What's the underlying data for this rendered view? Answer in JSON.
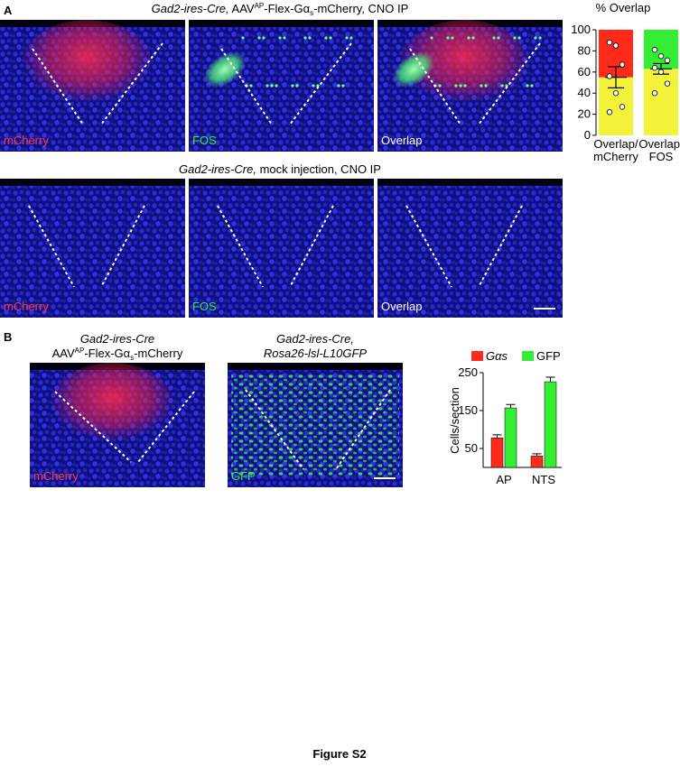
{
  "panel_a": {
    "label": "A",
    "row_1": {
      "title": {
        "italic": "Gad2-ires-Cre,",
        "parts": [
          " AAV",
          "AP",
          "-Flex-Gα",
          "s",
          "-mCherry, CNO IP"
        ]
      },
      "image_labels": [
        "mCherry",
        "FOS",
        "Overlap"
      ]
    },
    "row_2": {
      "title": {
        "italic": "Gad2-ires-Cre,",
        "rest": " mock injection, CNO IP"
      },
      "image_labels": [
        "mCherry",
        "FOS",
        "Overlap"
      ]
    }
  },
  "panel_b": {
    "label": "B",
    "image_1": {
      "line_1": "Gad2-ires-Cre",
      "line_2": [
        "AAV",
        "AP",
        "-Flex-Gα",
        "s",
        "-mCherry"
      ],
      "label": "mCherry"
    },
    "image_2": {
      "line_1": "Gad2-ires-Cre,",
      "line_2": "Rosa26-lsl-L10GFP",
      "label": "GFP"
    }
  },
  "chart_data": [
    {
      "type": "stacked_bar",
      "title": "% Overlap",
      "categories": [
        [
          "Overlap/",
          "mCherry"
        ],
        [
          "Overlap/",
          "FOS"
        ]
      ],
      "series": [
        {
          "colors": [
            "#f2f23a",
            "#f2f23a"
          ],
          "values": [
            55,
            63
          ],
          "errors": [
            10,
            5
          ],
          "points": [
            [
              88,
              85,
              67,
              56,
              40,
              27,
              22
            ],
            [
              81,
              75,
              71,
              64,
              60,
              49,
              40
            ]
          ]
        },
        {
          "colors": [
            "#ff2a1a",
            "#33ee33"
          ],
          "values": [
            45,
            37
          ]
        }
      ],
      "ylim": [
        0,
        100
      ],
      "yticks": [
        0,
        20,
        40,
        60,
        80,
        100
      ]
    },
    {
      "type": "grouped_bar",
      "ylabel": "Cells/section",
      "categories": [
        "AP",
        "NTS"
      ],
      "series": [
        {
          "name": "Gαs",
          "color": "#ff2a1a",
          "values": [
            78,
            30
          ],
          "errors": [
            8,
            6
          ]
        },
        {
          "name": "GFP",
          "color": "#33ee33",
          "values": [
            157,
            226
          ],
          "errors": [
            9,
            12
          ]
        }
      ],
      "ylim": [
        0,
        250
      ],
      "yticks": [
        50,
        150,
        250
      ]
    }
  ],
  "footer": "Figure S2"
}
